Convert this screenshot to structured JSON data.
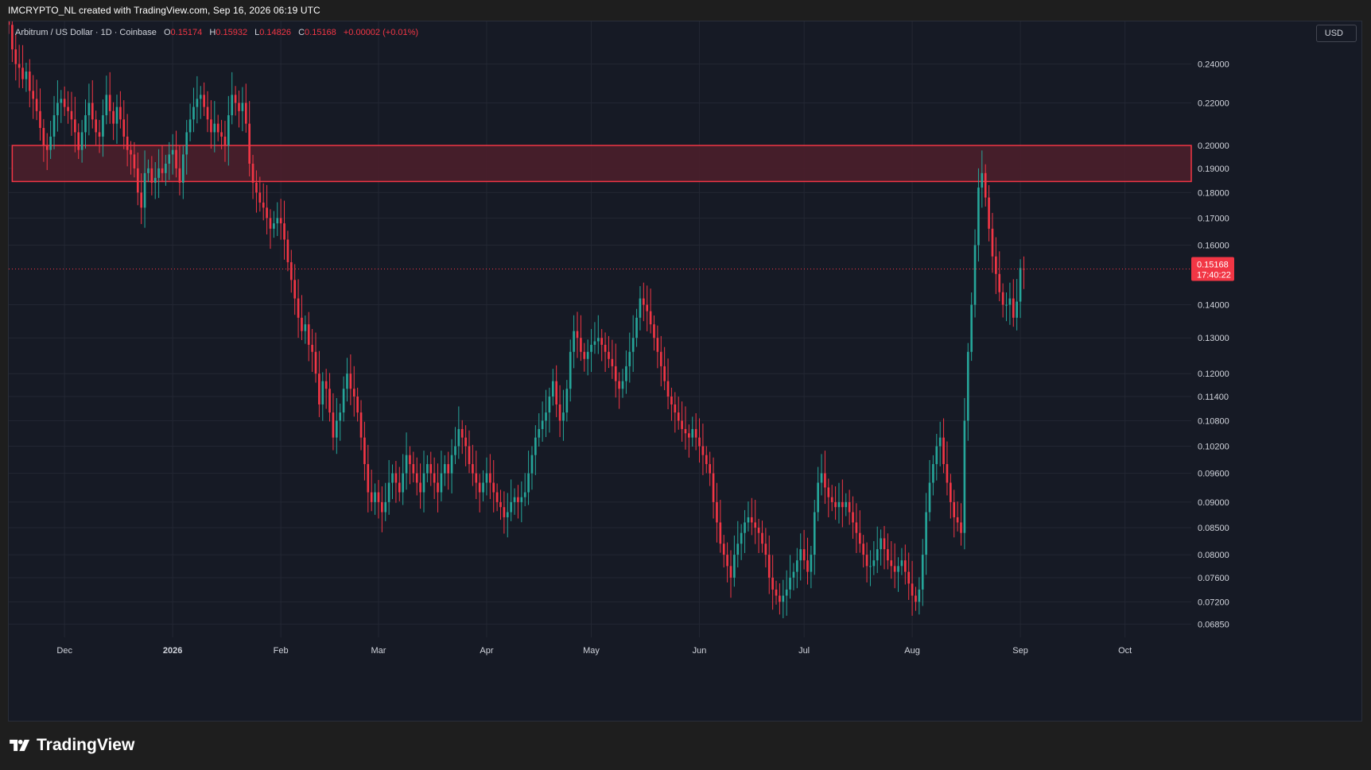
{
  "header": {
    "attribution": "IMCRYPTO_NL created with TradingView.com, Sep 16, 2026 06:19 UTC"
  },
  "legend": {
    "symbol": "Arbitrum / US Dollar · 1D · Coinbase",
    "o_label": "O",
    "o_value": "0.15174",
    "h_label": "H",
    "h_value": "0.15932",
    "l_label": "L",
    "l_value": "0.14826",
    "c_label": "C",
    "c_value": "0.15168",
    "change": "+0.00002 (+0.01%)"
  },
  "currency": "USD",
  "price_tag": {
    "price": "0.15168",
    "countdown": "17:40:22"
  },
  "brand": "TradingView",
  "colors": {
    "background": "#161a25",
    "up": "#26a69a",
    "down": "#f23645",
    "zone_fill": "#4a1f2b",
    "zone_border": "#f23645",
    "grid": "#232733",
    "axis_text": "#d1d4dc"
  },
  "chart_data": {
    "type": "candlestick",
    "y_scale": "log",
    "ylim": [
      0.0665,
      0.264
    ],
    "x_range": [
      "2025-11-15",
      "2026-10-20"
    ],
    "x_ticks": [
      {
        "date": "2025-12-01",
        "label": "Dec"
      },
      {
        "date": "2026-01-01",
        "label": "2026"
      },
      {
        "date": "2026-02-01",
        "label": "Feb"
      },
      {
        "date": "2026-03-01",
        "label": "Mar"
      },
      {
        "date": "2026-04-01",
        "label": "Apr"
      },
      {
        "date": "2026-05-01",
        "label": "May"
      },
      {
        "date": "2026-06-01",
        "label": "Jun"
      },
      {
        "date": "2026-07-01",
        "label": "Jul"
      },
      {
        "date": "2026-08-01",
        "label": "Aug"
      },
      {
        "date": "2026-09-01",
        "label": "Sep"
      },
      {
        "date": "2026-10-01",
        "label": "Oct"
      }
    ],
    "y_ticks": [
      "0.24000",
      "0.22000",
      "0.20000",
      "0.19000",
      "0.18000",
      "0.17000",
      "0.16000",
      "0.14000",
      "0.13000",
      "0.12000",
      "0.11400",
      "0.10800",
      "0.10200",
      "0.09600",
      "0.09000",
      "0.08500",
      "0.08000",
      "0.07600",
      "0.07200",
      "0.06850"
    ],
    "current_price": 0.15168,
    "zones": [
      {
        "from_date": "2025-11-16",
        "to_date": "2026-10-20",
        "low": 0.1845,
        "high": 0.2
      }
    ],
    "start_date": "2025-11-15",
    "closes": [
      0.262,
      0.248,
      0.24,
      0.238,
      0.232,
      0.236,
      0.226,
      0.222,
      0.216,
      0.208,
      0.2,
      0.198,
      0.204,
      0.214,
      0.22,
      0.222,
      0.218,
      0.216,
      0.212,
      0.206,
      0.198,
      0.206,
      0.214,
      0.22,
      0.212,
      0.206,
      0.204,
      0.214,
      0.224,
      0.216,
      0.21,
      0.218,
      0.212,
      0.204,
      0.198,
      0.196,
      0.19,
      0.18,
      0.174,
      0.188,
      0.19,
      0.184,
      0.186,
      0.19,
      0.188,
      0.192,
      0.196,
      0.198,
      0.19,
      0.184,
      0.196,
      0.206,
      0.212,
      0.218,
      0.222,
      0.224,
      0.218,
      0.212,
      0.206,
      0.21,
      0.206,
      0.204,
      0.2,
      0.214,
      0.224,
      0.22,
      0.216,
      0.22,
      0.21,
      0.192,
      0.184,
      0.18,
      0.176,
      0.174,
      0.17,
      0.166,
      0.168,
      0.17,
      0.168,
      0.162,
      0.154,
      0.148,
      0.142,
      0.136,
      0.132,
      0.134,
      0.128,
      0.126,
      0.12,
      0.112,
      0.118,
      0.116,
      0.11,
      0.104,
      0.108,
      0.11,
      0.116,
      0.12,
      0.116,
      0.114,
      0.11,
      0.104,
      0.098,
      0.092,
      0.09,
      0.092,
      0.09,
      0.088,
      0.09,
      0.094,
      0.096,
      0.094,
      0.092,
      0.096,
      0.1,
      0.098,
      0.096,
      0.094,
      0.092,
      0.096,
      0.098,
      0.096,
      0.094,
      0.092,
      0.096,
      0.098,
      0.096,
      0.1,
      0.102,
      0.106,
      0.104,
      0.102,
      0.098,
      0.096,
      0.094,
      0.092,
      0.094,
      0.096,
      0.094,
      0.092,
      0.09,
      0.089,
      0.087,
      0.088,
      0.09,
      0.091,
      0.09,
      0.091,
      0.092,
      0.096,
      0.1,
      0.104,
      0.106,
      0.108,
      0.11,
      0.114,
      0.118,
      0.112,
      0.108,
      0.11,
      0.116,
      0.126,
      0.132,
      0.13,
      0.126,
      0.124,
      0.126,
      0.128,
      0.129,
      0.13,
      0.128,
      0.126,
      0.124,
      0.122,
      0.118,
      0.116,
      0.118,
      0.122,
      0.126,
      0.13,
      0.136,
      0.142,
      0.14,
      0.138,
      0.134,
      0.13,
      0.126,
      0.122,
      0.118,
      0.114,
      0.112,
      0.11,
      0.108,
      0.106,
      0.105,
      0.104,
      0.106,
      0.104,
      0.102,
      0.1,
      0.098,
      0.096,
      0.09,
      0.086,
      0.082,
      0.08,
      0.078,
      0.076,
      0.08,
      0.082,
      0.084,
      0.086,
      0.087,
      0.086,
      0.085,
      0.084,
      0.082,
      0.08,
      0.076,
      0.074,
      0.073,
      0.072,
      0.073,
      0.074,
      0.076,
      0.077,
      0.079,
      0.081,
      0.079,
      0.077,
      0.08,
      0.088,
      0.094,
      0.096,
      0.093,
      0.091,
      0.09,
      0.089,
      0.09,
      0.089,
      0.09,
      0.088,
      0.086,
      0.084,
      0.082,
      0.08,
      0.078,
      0.078,
      0.079,
      0.081,
      0.083,
      0.081,
      0.079,
      0.078,
      0.077,
      0.078,
      0.079,
      0.077,
      0.075,
      0.073,
      0.072,
      0.074,
      0.08,
      0.088,
      0.094,
      0.098,
      0.102,
      0.104,
      0.098,
      0.094,
      0.09,
      0.087,
      0.086,
      0.084,
      0.108,
      0.126,
      0.14,
      0.16,
      0.182,
      0.188,
      0.178,
      0.166,
      0.156,
      0.15,
      0.144,
      0.14,
      0.14,
      0.142,
      0.136,
      0.141,
      0.152,
      0.1517
    ],
    "opens": [
      0.266,
      0.262,
      0.248,
      0.24,
      0.238,
      0.232,
      0.236,
      0.226,
      0.222,
      0.216,
      0.208,
      0.2,
      0.198,
      0.204,
      0.214,
      0.22,
      0.222,
      0.218,
      0.216,
      0.212,
      0.206,
      0.198,
      0.206,
      0.214,
      0.22,
      0.212,
      0.206,
      0.204,
      0.214,
      0.224,
      0.216,
      0.21,
      0.218,
      0.212,
      0.204,
      0.198,
      0.196,
      0.19,
      0.18,
      0.174,
      0.188,
      0.19,
      0.184,
      0.186,
      0.19,
      0.188,
      0.192,
      0.196,
      0.198,
      0.19,
      0.184,
      0.196,
      0.206,
      0.212,
      0.218,
      0.222,
      0.224,
      0.218,
      0.212,
      0.206,
      0.21,
      0.206,
      0.204,
      0.2,
      0.214,
      0.224,
      0.22,
      0.216,
      0.22,
      0.21,
      0.192,
      0.184,
      0.18,
      0.176,
      0.174,
      0.17,
      0.166,
      0.168,
      0.17,
      0.168,
      0.162,
      0.154,
      0.148,
      0.142,
      0.136,
      0.132,
      0.134,
      0.128,
      0.126,
      0.12,
      0.112,
      0.118,
      0.116,
      0.11,
      0.104,
      0.108,
      0.11,
      0.116,
      0.12,
      0.116,
      0.114,
      0.11,
      0.104,
      0.098,
      0.092,
      0.09,
      0.092,
      0.09,
      0.088,
      0.09,
      0.094,
      0.096,
      0.094,
      0.092,
      0.096,
      0.1,
      0.098,
      0.096,
      0.094,
      0.092,
      0.096,
      0.098,
      0.096,
      0.094,
      0.092,
      0.096,
      0.098,
      0.096,
      0.1,
      0.102,
      0.106,
      0.104,
      0.102,
      0.098,
      0.096,
      0.094,
      0.092,
      0.094,
      0.096,
      0.094,
      0.092,
      0.09,
      0.089,
      0.087,
      0.088,
      0.09,
      0.091,
      0.09,
      0.091,
      0.092,
      0.096,
      0.1,
      0.104,
      0.106,
      0.108,
      0.11,
      0.114,
      0.118,
      0.112,
      0.108,
      0.11,
      0.116,
      0.126,
      0.132,
      0.13,
      0.126,
      0.124,
      0.126,
      0.128,
      0.129,
      0.13,
      0.128,
      0.126,
      0.124,
      0.122,
      0.118,
      0.116,
      0.118,
      0.122,
      0.126,
      0.13,
      0.136,
      0.142,
      0.14,
      0.138,
      0.134,
      0.13,
      0.126,
      0.122,
      0.118,
      0.114,
      0.112,
      0.11,
      0.108,
      0.106,
      0.105,
      0.104,
      0.106,
      0.104,
      0.102,
      0.1,
      0.098,
      0.096,
      0.09,
      0.086,
      0.082,
      0.08,
      0.078,
      0.076,
      0.08,
      0.082,
      0.084,
      0.086,
      0.087,
      0.086,
      0.085,
      0.084,
      0.082,
      0.08,
      0.076,
      0.074,
      0.073,
      0.072,
      0.073,
      0.074,
      0.076,
      0.077,
      0.079,
      0.081,
      0.079,
      0.077,
      0.08,
      0.088,
      0.094,
      0.096,
      0.093,
      0.091,
      0.09,
      0.089,
      0.09,
      0.089,
      0.09,
      0.088,
      0.086,
      0.084,
      0.082,
      0.08,
      0.078,
      0.078,
      0.079,
      0.081,
      0.083,
      0.081,
      0.079,
      0.078,
      0.077,
      0.078,
      0.079,
      0.077,
      0.075,
      0.073,
      0.072,
      0.074,
      0.08,
      0.088,
      0.094,
      0.098,
      0.102,
      0.104,
      0.098,
      0.094,
      0.09,
      0.087,
      0.086,
      0.084,
      0.108,
      0.126,
      0.14,
      0.16,
      0.182,
      0.188,
      0.178,
      0.166,
      0.156,
      0.15,
      0.144,
      0.14,
      0.14,
      0.142,
      0.136,
      0.141,
      0.15174
    ]
  }
}
